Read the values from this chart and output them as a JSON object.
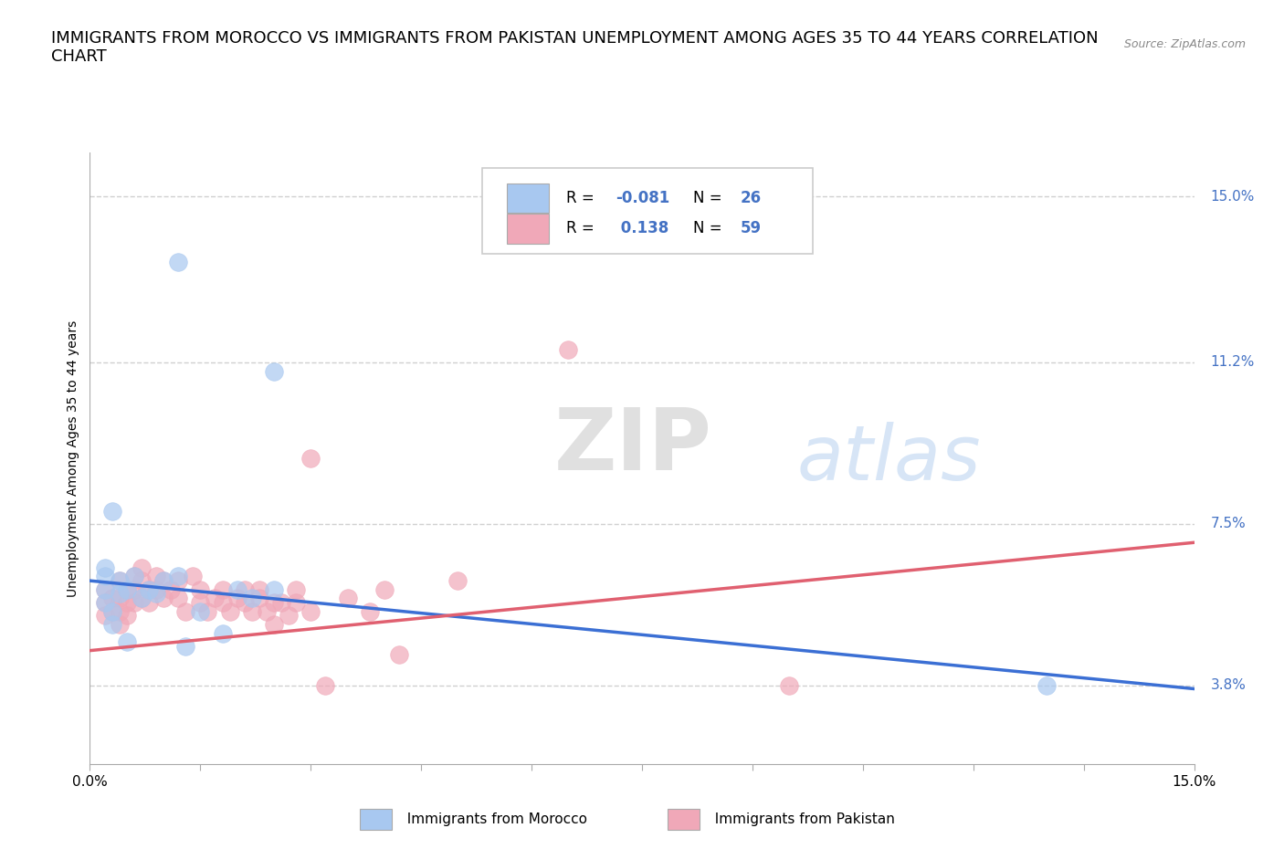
{
  "title": "IMMIGRANTS FROM MOROCCO VS IMMIGRANTS FROM PAKISTAN UNEMPLOYMENT AMONG AGES 35 TO 44 YEARS CORRELATION\nCHART",
  "source": "Source: ZipAtlas.com",
  "ylabel": "Unemployment Among Ages 35 to 44 years",
  "xlim": [
    0,
    0.15
  ],
  "ylim": [
    0.02,
    0.16
  ],
  "yticks": [
    0.038,
    0.075,
    0.112,
    0.15
  ],
  "ytick_labels": [
    "3.8%",
    "7.5%",
    "11.2%",
    "15.0%"
  ],
  "xticks": [
    0.0,
    0.015,
    0.03,
    0.045,
    0.06,
    0.075,
    0.09,
    0.105,
    0.12,
    0.135,
    0.15
  ],
  "xtick_labels": [
    "0.0%",
    "",
    "",
    "",
    "",
    "",
    "",
    "",
    "",
    "",
    "15.0%"
  ],
  "morocco_color": "#a8c8f0",
  "pakistan_color": "#f0a8b8",
  "morocco_R": -0.081,
  "morocco_N": 26,
  "pakistan_R": 0.138,
  "pakistan_N": 59,
  "morocco_scatter": [
    [
      0.002,
      0.063
    ],
    [
      0.002,
      0.06
    ],
    [
      0.002,
      0.057
    ],
    [
      0.003,
      0.055
    ],
    [
      0.003,
      0.052
    ],
    [
      0.004,
      0.062
    ],
    [
      0.004,
      0.059
    ],
    [
      0.005,
      0.06
    ],
    [
      0.006,
      0.063
    ],
    [
      0.007,
      0.058
    ],
    [
      0.008,
      0.06
    ],
    [
      0.009,
      0.059
    ],
    [
      0.01,
      0.062
    ],
    [
      0.012,
      0.063
    ],
    [
      0.013,
      0.047
    ],
    [
      0.015,
      0.055
    ],
    [
      0.018,
      0.05
    ],
    [
      0.02,
      0.06
    ],
    [
      0.022,
      0.058
    ],
    [
      0.025,
      0.06
    ],
    [
      0.012,
      0.135
    ],
    [
      0.025,
      0.11
    ],
    [
      0.003,
      0.078
    ],
    [
      0.005,
      0.048
    ],
    [
      0.13,
      0.038
    ],
    [
      0.002,
      0.065
    ]
  ],
  "pakistan_scatter": [
    [
      0.002,
      0.06
    ],
    [
      0.002,
      0.057
    ],
    [
      0.002,
      0.054
    ],
    [
      0.003,
      0.058
    ],
    [
      0.003,
      0.055
    ],
    [
      0.004,
      0.062
    ],
    [
      0.004,
      0.058
    ],
    [
      0.004,
      0.055
    ],
    [
      0.004,
      0.052
    ],
    [
      0.005,
      0.06
    ],
    [
      0.005,
      0.057
    ],
    [
      0.005,
      0.054
    ],
    [
      0.006,
      0.063
    ],
    [
      0.006,
      0.06
    ],
    [
      0.006,
      0.057
    ],
    [
      0.007,
      0.065
    ],
    [
      0.007,
      0.062
    ],
    [
      0.007,
      0.058
    ],
    [
      0.008,
      0.06
    ],
    [
      0.008,
      0.057
    ],
    [
      0.009,
      0.063
    ],
    [
      0.009,
      0.06
    ],
    [
      0.01,
      0.062
    ],
    [
      0.01,
      0.058
    ],
    [
      0.011,
      0.06
    ],
    [
      0.012,
      0.062
    ],
    [
      0.012,
      0.058
    ],
    [
      0.013,
      0.055
    ],
    [
      0.014,
      0.063
    ],
    [
      0.015,
      0.06
    ],
    [
      0.015,
      0.057
    ],
    [
      0.016,
      0.055
    ],
    [
      0.017,
      0.058
    ],
    [
      0.018,
      0.06
    ],
    [
      0.018,
      0.057
    ],
    [
      0.019,
      0.055
    ],
    [
      0.02,
      0.058
    ],
    [
      0.021,
      0.06
    ],
    [
      0.021,
      0.057
    ],
    [
      0.022,
      0.055
    ],
    [
      0.023,
      0.06
    ],
    [
      0.023,
      0.058
    ],
    [
      0.024,
      0.055
    ],
    [
      0.025,
      0.057
    ],
    [
      0.025,
      0.052
    ],
    [
      0.026,
      0.057
    ],
    [
      0.027,
      0.054
    ],
    [
      0.028,
      0.06
    ],
    [
      0.028,
      0.057
    ],
    [
      0.03,
      0.055
    ],
    [
      0.032,
      0.038
    ],
    [
      0.035,
      0.058
    ],
    [
      0.038,
      0.055
    ],
    [
      0.04,
      0.06
    ],
    [
      0.042,
      0.045
    ],
    [
      0.05,
      0.062
    ],
    [
      0.065,
      0.115
    ],
    [
      0.095,
      0.038
    ],
    [
      0.03,
      0.09
    ]
  ],
  "morocco_line_color": "#3b6fd4",
  "pakistan_line_color": "#e06070",
  "watermark_zip": "ZIP",
  "watermark_atlas": "atlas",
  "background_color": "#ffffff",
  "grid_color": "#d0d0d0",
  "right_label_color": "#4472c4",
  "title_fontsize": 13,
  "axis_label_fontsize": 10,
  "tick_fontsize": 11,
  "legend_label_color": "#4472c4"
}
